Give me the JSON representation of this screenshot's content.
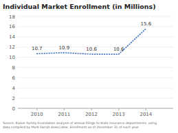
{
  "chart_data": {
    "type": "line",
    "title": "Individual Market Enrollment (in Millions)",
    "x": [
      2010,
      2011,
      2012,
      2013,
      2014
    ],
    "values": [
      10.7,
      10.9,
      10.6,
      10.6,
      15.6
    ],
    "color": "#4472c4",
    "line_style": "dotted",
    "xlim": [
      2009.3,
      2015.0
    ],
    "xticks": [
      2010,
      2011,
      2012,
      2013,
      2014
    ],
    "ylim": [
      0,
      18
    ],
    "yticks": [
      0,
      2,
      4,
      6,
      8,
      10,
      12,
      14,
      16,
      18
    ],
    "grid": true,
    "data_labels": true,
    "source": "Source: Kaiser Family Foundation analysis of annual filings to state insurance departments, using\ndata compiled by Mark Farrah Associates. Enrollment as of December 31 of each year."
  }
}
